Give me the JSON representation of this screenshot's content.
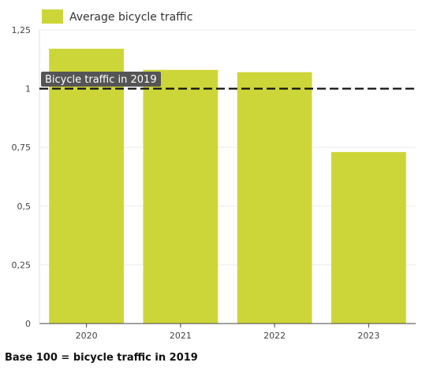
{
  "chart_data": {
    "type": "bar",
    "categories": [
      "2020",
      "2021",
      "2022",
      "2023"
    ],
    "series": [
      {
        "name": "Average bicycle traffic",
        "values": [
          1.17,
          1.08,
          1.07,
          0.73
        ],
        "color": "#cdd638"
      }
    ],
    "y_ticks": [
      "0",
      "0,25",
      "0,5",
      "0,75",
      "1",
      "1,25"
    ],
    "y_tick_values": [
      0,
      0.25,
      0.5,
      0.75,
      1,
      1.25
    ],
    "ylim": [
      0,
      1.25
    ],
    "grid": true,
    "legend_position": "top-left",
    "reference_line": {
      "value": 1,
      "label": "Bicycle traffic in 2019",
      "style": "dashed",
      "color": "#111111"
    },
    "footnote": "Base 100 = bicycle traffic in 2019"
  }
}
